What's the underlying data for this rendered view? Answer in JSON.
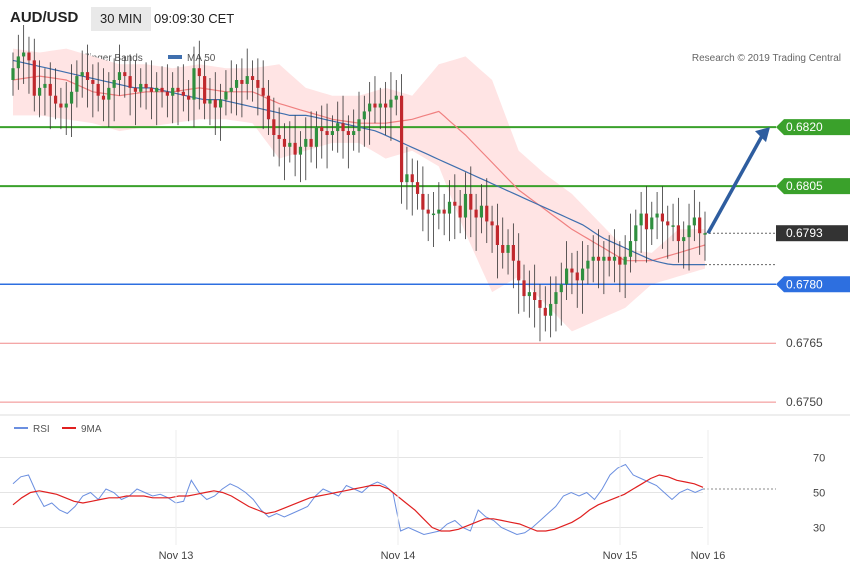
{
  "header": {
    "pair": "AUD/USD",
    "timeframe": "30 MIN",
    "time": "09:09:30 CET"
  },
  "legend": {
    "ma20_label": "MA 20 + Bollinger Bands",
    "ma50_label": "MA 50",
    "ma20_color": "#f08080",
    "ma50_color": "#3f6fae"
  },
  "credit": "Research © 2019 Trading Central",
  "colors": {
    "up_candle": "#2f8f3f",
    "down_candle": "#c0282d",
    "band_fill": "#ffe4e4",
    "resistance": "#3aa12b",
    "pivot": "#2d6fe0",
    "support": "#f08a8a",
    "last_price": "#333333",
    "arrow": "#2e5d9f",
    "rsi_line": "#6b8fe0",
    "rsi_ma": "#e02020"
  },
  "chart_data": [
    {
      "type": "candlestick",
      "title": "AUD/USD 30 MIN",
      "ylim": [
        0.6748,
        0.6846
      ],
      "x_ticks": [
        "Nov 13",
        "Nov 14",
        "Nov 15",
        "Nov 16"
      ],
      "levels": [
        {
          "value": "0.6820",
          "kind": "resistance"
        },
        {
          "value": "0.6805",
          "kind": "resistance"
        },
        {
          "value": "0.6793",
          "kind": "last"
        },
        {
          "value": "0.6780",
          "kind": "pivot"
        },
        {
          "value": "0.6765",
          "kind": "support"
        },
        {
          "value": "0.6750",
          "kind": "support"
        }
      ],
      "closes": [
        0.6835,
        0.6838,
        0.6839,
        0.6837,
        0.6828,
        0.683,
        0.6831,
        0.6828,
        0.6826,
        0.6825,
        0.6826,
        0.6829,
        0.6833,
        0.6834,
        0.6832,
        0.6831,
        0.6828,
        0.6827,
        0.683,
        0.6832,
        0.6834,
        0.6833,
        0.683,
        0.6829,
        0.6831,
        0.683,
        0.6829,
        0.683,
        0.6829,
        0.6828,
        0.683,
        0.6829,
        0.6828,
        0.6827,
        0.6835,
        0.6833,
        0.6826,
        0.6827,
        0.6825,
        0.6827,
        0.6829,
        0.683,
        0.6832,
        0.6831,
        0.6833,
        0.6832,
        0.683,
        0.6828,
        0.6822,
        0.6818,
        0.6817,
        0.6815,
        0.6816,
        0.6813,
        0.6815,
        0.6817,
        0.6815,
        0.682,
        0.6819,
        0.6818,
        0.6819,
        0.6821,
        0.6819,
        0.6818,
        0.6819,
        0.6822,
        0.6824,
        0.6826,
        0.6825,
        0.6826,
        0.6825,
        0.6827,
        0.6828,
        0.6806,
        0.6808,
        0.6806,
        0.6803,
        0.6799,
        0.6798,
        0.6798,
        0.6799,
        0.6798,
        0.6801,
        0.68,
        0.6797,
        0.6803,
        0.6799,
        0.6797,
        0.68,
        0.6796,
        0.6795,
        0.679,
        0.6788,
        0.679,
        0.6786,
        0.6781,
        0.6777,
        0.6778,
        0.6776,
        0.6774,
        0.6772,
        0.6775,
        0.6778,
        0.678,
        0.6784,
        0.6783,
        0.6781,
        0.6784,
        0.6786,
        0.6787,
        0.6786,
        0.6787,
        0.6786,
        0.6787,
        0.6785,
        0.6787,
        0.6791,
        0.6795,
        0.6798,
        0.6794,
        0.6797,
        0.6798,
        0.6796,
        0.6795,
        0.6795,
        0.6791,
        0.6792,
        0.6795,
        0.6797,
        0.6793,
        0.6793
      ],
      "ma50": [
        0.6837,
        0.6836,
        0.6835,
        0.6834,
        0.6833,
        0.6832,
        0.6831,
        0.683,
        0.683,
        0.6829,
        0.6828,
        0.6827,
        0.6827,
        0.6826,
        0.6825,
        0.6824,
        0.6823,
        0.6823,
        0.6822,
        0.6821,
        0.682,
        0.6819,
        0.6817,
        0.6815,
        0.6813,
        0.6811,
        0.6809,
        0.6807,
        0.6805,
        0.6803,
        0.6801,
        0.6799,
        0.6797,
        0.6795,
        0.6792,
        0.679,
        0.6788,
        0.6786,
        0.6785,
        0.6785,
        0.6785
      ],
      "ma20": [
        0.6832,
        0.6833,
        0.6832,
        0.6829,
        0.6828,
        0.6829,
        0.6829,
        0.683,
        0.6829,
        0.6829,
        0.6826,
        0.6824,
        0.6822,
        0.6821,
        0.6821,
        0.6822,
        0.6824,
        0.6818,
        0.6811,
        0.6804,
        0.6799,
        0.6794,
        0.679,
        0.6786,
        0.6786,
        0.6788,
        0.679
      ],
      "bb_upper": [
        0.684,
        0.6839,
        0.684,
        0.6838,
        0.6836,
        0.6836,
        0.6835,
        0.6836,
        0.6835,
        0.6835,
        0.6836,
        0.683,
        0.6828,
        0.6828,
        0.683,
        0.6828,
        0.6836,
        0.6838,
        0.6832,
        0.6814,
        0.6808,
        0.6803,
        0.6796,
        0.6789,
        0.6788,
        0.6794,
        0.6794
      ],
      "bb_lower": [
        0.6823,
        0.6823,
        0.6822,
        0.6821,
        0.6819,
        0.682,
        0.6821,
        0.6822,
        0.6822,
        0.6821,
        0.6812,
        0.6814,
        0.6816,
        0.6816,
        0.6812,
        0.6814,
        0.681,
        0.6793,
        0.6778,
        0.6782,
        0.6775,
        0.6768,
        0.6771,
        0.6774,
        0.678,
        0.6782,
        0.6784
      ]
    },
    {
      "type": "line",
      "title": "RSI",
      "ylim": [
        20,
        80
      ],
      "y_ticks": [
        "70",
        "50",
        "30"
      ],
      "series": [
        {
          "name": "RSI",
          "values": [
            55,
            59,
            60,
            50,
            42,
            44,
            40,
            38,
            42,
            48,
            50,
            46,
            52,
            50,
            46,
            48,
            52,
            50,
            48,
            49,
            47,
            44,
            45,
            57,
            50,
            46,
            48,
            52,
            55,
            53,
            50,
            46,
            40,
            36,
            38,
            36,
            38,
            40,
            42,
            48,
            52,
            50,
            48,
            54,
            52,
            50,
            54,
            56,
            54,
            50,
            28,
            30,
            28,
            26,
            27,
            28,
            32,
            34,
            30,
            28,
            40,
            36,
            34,
            30,
            28,
            26,
            27,
            30,
            34,
            38,
            42,
            48,
            50,
            48,
            50,
            46,
            52,
            60,
            64,
            66,
            60,
            58,
            56,
            54,
            50,
            46,
            50,
            52,
            50,
            52
          ]
        },
        {
          "name": "9MA",
          "values": [
            43,
            47,
            50,
            51,
            50,
            49,
            47,
            45,
            44,
            45,
            46,
            47,
            47,
            48,
            48,
            48,
            47,
            47,
            47,
            48,
            48,
            49,
            50,
            51,
            50,
            48,
            45,
            42,
            40,
            38,
            39,
            41,
            43,
            45,
            47,
            48,
            49,
            50,
            51,
            52,
            53,
            54,
            54,
            52,
            48,
            44,
            40,
            35,
            30,
            28,
            28,
            29,
            31,
            33,
            35,
            35,
            34,
            33,
            32,
            30,
            28,
            28,
            29,
            31,
            33,
            36,
            40,
            43,
            45,
            47,
            49,
            52,
            55,
            58,
            60,
            59,
            57,
            56,
            55,
            53
          ]
        }
      ]
    }
  ]
}
